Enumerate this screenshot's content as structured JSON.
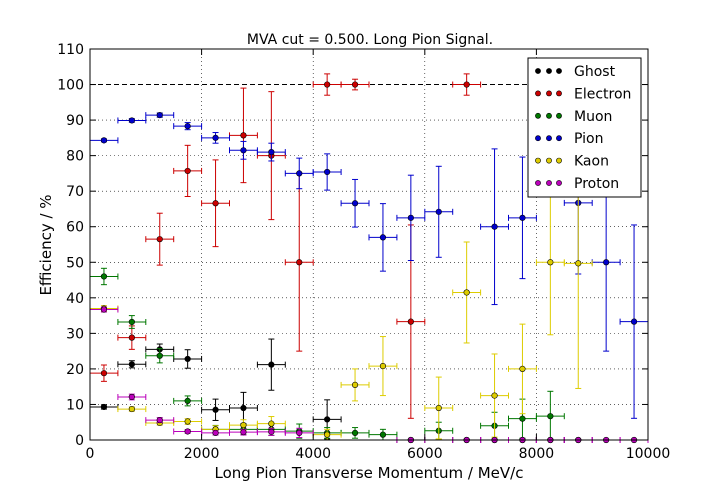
{
  "chart_data": {
    "type": "scatter",
    "title": "MVA cut = 0.500. Long Pion Signal.",
    "xlabel": "Long Pion Transverse Momentum / MeV/c",
    "ylabel": "Efficiency / %",
    "xlim": [
      0,
      10000
    ],
    "ylim": [
      0,
      110
    ],
    "xticks": [
      0,
      2000,
      4000,
      6000,
      8000,
      10000
    ],
    "yticks": [
      0,
      10,
      20,
      30,
      40,
      50,
      60,
      70,
      80,
      90,
      100,
      110
    ],
    "grid": true,
    "reference_line": 100,
    "legend_position": "top-right",
    "series": [
      {
        "name": "Ghost",
        "color": "#000000",
        "points": [
          {
            "x": 250,
            "y": 9.3,
            "xerr": 250,
            "yerr": 0.6
          },
          {
            "x": 750,
            "y": 21.3,
            "xerr": 250,
            "yerr": 1.0
          },
          {
            "x": 1250,
            "y": 25.5,
            "xerr": 250,
            "yerr": 1.5
          },
          {
            "x": 1750,
            "y": 22.8,
            "xerr": 250,
            "yerr": 2.6
          },
          {
            "x": 2250,
            "y": 8.5,
            "xerr": 250,
            "yerr": 3.0
          },
          {
            "x": 2750,
            "y": 9.0,
            "xerr": 250,
            "yerr": 4.4
          },
          {
            "x": 3250,
            "y": 21.2,
            "xerr": 250,
            "yerr": 7.2
          },
          {
            "x": 4250,
            "y": 5.8,
            "xerr": 250,
            "yerr": 5.5
          },
          {
            "x": 5750,
            "y": 0,
            "xerr": 250,
            "yerr": 0
          },
          {
            "x": 6750,
            "y": 0,
            "xerr": 250,
            "yerr": 0
          },
          {
            "x": 7250,
            "y": 0,
            "xerr": 250,
            "yerr": 0
          },
          {
            "x": 7750,
            "y": 0,
            "xerr": 250,
            "yerr": 0
          },
          {
            "x": 8250,
            "y": 0,
            "xerr": 250,
            "yerr": 0
          },
          {
            "x": 8750,
            "y": 0,
            "xerr": 250,
            "yerr": 0
          }
        ]
      },
      {
        "name": "Electron",
        "color": "#cc0000",
        "points": [
          {
            "x": 250,
            "y": 18.8,
            "xerr": 250,
            "yerr": 2.3
          },
          {
            "x": 750,
            "y": 28.8,
            "xerr": 250,
            "yerr": 3.3
          },
          {
            "x": 1250,
            "y": 56.5,
            "xerr": 250,
            "yerr": 7.3
          },
          {
            "x": 1750,
            "y": 75.7,
            "xerr": 250,
            "yerr": 7.2
          },
          {
            "x": 2250,
            "y": 66.6,
            "xerr": 250,
            "yerr": 12.2
          },
          {
            "x": 2750,
            "y": 85.7,
            "xerr": 250,
            "yerr": 13.3
          },
          {
            "x": 3250,
            "y": 80.0,
            "xerr": 250,
            "yerr": 18.0
          },
          {
            "x": 3750,
            "y": 50.0,
            "xerr": 250,
            "yerr": 25.0
          },
          {
            "x": 4250,
            "y": 100.0,
            "xerr": 250,
            "yerr": 3.0
          },
          {
            "x": 4750,
            "y": 100.0,
            "xerr": 250,
            "yerr": 1.5
          },
          {
            "x": 5750,
            "y": 33.3,
            "xerr": 250,
            "yerr": 27.2
          },
          {
            "x": 6750,
            "y": 100.0,
            "xerr": 250,
            "yerr": 3.0
          }
        ]
      },
      {
        "name": "Muon",
        "color": "#007700",
        "points": [
          {
            "x": 250,
            "y": 46.0,
            "xerr": 250,
            "yerr": 2.3
          },
          {
            "x": 750,
            "y": 33.2,
            "xerr": 250,
            "yerr": 1.8
          },
          {
            "x": 1250,
            "y": 23.7,
            "xerr": 250,
            "yerr": 2.0
          },
          {
            "x": 1750,
            "y": 11.0,
            "xerr": 250,
            "yerr": 1.4
          },
          {
            "x": 2250,
            "y": 3.0,
            "xerr": 250,
            "yerr": 1.1
          },
          {
            "x": 2750,
            "y": 3.0,
            "xerr": 250,
            "yerr": 1.5
          },
          {
            "x": 3250,
            "y": 3.0,
            "xerr": 250,
            "yerr": 1.7
          },
          {
            "x": 3750,
            "y": 2.5,
            "xerr": 250,
            "yerr": 2.0
          },
          {
            "x": 4250,
            "y": 2.0,
            "xerr": 250,
            "yerr": 1.5
          },
          {
            "x": 4750,
            "y": 2.0,
            "xerr": 250,
            "yerr": 1.5
          },
          {
            "x": 5250,
            "y": 1.5,
            "xerr": 250,
            "yerr": 1.5
          },
          {
            "x": 6250,
            "y": 2.6,
            "xerr": 250,
            "yerr": 2.4
          },
          {
            "x": 7250,
            "y": 4.0,
            "xerr": 250,
            "yerr": 3.8
          },
          {
            "x": 7750,
            "y": 6.0,
            "xerr": 250,
            "yerr": 5.5
          },
          {
            "x": 8250,
            "y": 6.7,
            "xerr": 250,
            "yerr": 7.0
          }
        ]
      },
      {
        "name": "Pion",
        "color": "#0000cc",
        "points": [
          {
            "x": 250,
            "y": 84.3,
            "xerr": 250,
            "yerr": 0.4
          },
          {
            "x": 750,
            "y": 89.9,
            "xerr": 250,
            "yerr": 0.5
          },
          {
            "x": 1250,
            "y": 91.4,
            "xerr": 250,
            "yerr": 0.6
          },
          {
            "x": 1750,
            "y": 88.3,
            "xerr": 250,
            "yerr": 1.0
          },
          {
            "x": 2250,
            "y": 85.0,
            "xerr": 250,
            "yerr": 1.5
          },
          {
            "x": 2750,
            "y": 81.5,
            "xerr": 250,
            "yerr": 2.5
          },
          {
            "x": 3250,
            "y": 81.0,
            "xerr": 250,
            "yerr": 2.5
          },
          {
            "x": 3750,
            "y": 75.0,
            "xerr": 250,
            "yerr": 4.3
          },
          {
            "x": 4250,
            "y": 75.4,
            "xerr": 250,
            "yerr": 5.1
          },
          {
            "x": 4750,
            "y": 66.6,
            "xerr": 250,
            "yerr": 6.7
          },
          {
            "x": 5250,
            "y": 57.0,
            "xerr": 250,
            "yerr": 9.5
          },
          {
            "x": 5750,
            "y": 62.5,
            "xerr": 250,
            "yerr": 12.0
          },
          {
            "x": 6250,
            "y": 64.2,
            "xerr": 250,
            "yerr": 12.8
          },
          {
            "x": 7250,
            "y": 60.0,
            "xerr": 250,
            "yerr": 21.9
          },
          {
            "x": 7750,
            "y": 62.5,
            "xerr": 250,
            "yerr": 17.1
          },
          {
            "x": 8750,
            "y": 66.7,
            "xerr": 250,
            "yerr": 20.0
          },
          {
            "x": 9250,
            "y": 50.0,
            "xerr": 250,
            "yerr": 25.0
          },
          {
            "x": 9750,
            "y": 33.3,
            "xerr": 250,
            "yerr": 27.2
          }
        ]
      },
      {
        "name": "Kaon",
        "color": "#ddcc00",
        "points": [
          {
            "x": 250,
            "y": 37.0,
            "xerr": 250,
            "yerr": 0.8
          },
          {
            "x": 750,
            "y": 8.7,
            "xerr": 250,
            "yerr": 0.6
          },
          {
            "x": 1250,
            "y": 4.8,
            "xerr": 250,
            "yerr": 0.6
          },
          {
            "x": 1750,
            "y": 5.2,
            "xerr": 250,
            "yerr": 0.8
          },
          {
            "x": 2250,
            "y": 3.0,
            "xerr": 250,
            "yerr": 1.0
          },
          {
            "x": 2750,
            "y": 4.2,
            "xerr": 250,
            "yerr": 1.5
          },
          {
            "x": 3250,
            "y": 4.6,
            "xerr": 250,
            "yerr": 2.0
          },
          {
            "x": 4250,
            "y": 1.5,
            "xerr": 250,
            "yerr": 1.5
          },
          {
            "x": 4750,
            "y": 15.5,
            "xerr": 250,
            "yerr": 4.5
          },
          {
            "x": 5250,
            "y": 20.8,
            "xerr": 250,
            "yerr": 8.3
          },
          {
            "x": 6250,
            "y": 9.0,
            "xerr": 250,
            "yerr": 8.7
          },
          {
            "x": 6750,
            "y": 41.5,
            "xerr": 250,
            "yerr": 14.2
          },
          {
            "x": 7250,
            "y": 12.5,
            "xerr": 250,
            "yerr": 11.7
          },
          {
            "x": 7750,
            "y": 20.0,
            "xerr": 250,
            "yerr": 12.6
          },
          {
            "x": 8250,
            "y": 50.0,
            "xerr": 250,
            "yerr": 20.4
          },
          {
            "x": 8750,
            "y": 49.7,
            "xerr": 250,
            "yerr": 35.2
          }
        ]
      },
      {
        "name": "Proton",
        "color": "#bb00bb",
        "points": [
          {
            "x": 250,
            "y": 36.7,
            "xerr": 250,
            "yerr": 0.7
          },
          {
            "x": 750,
            "y": 12.1,
            "xerr": 250,
            "yerr": 0.8
          },
          {
            "x": 1250,
            "y": 5.6,
            "xerr": 250,
            "yerr": 0.7
          },
          {
            "x": 1750,
            "y": 2.4,
            "xerr": 250,
            "yerr": 0.5
          },
          {
            "x": 2250,
            "y": 2.0,
            "xerr": 250,
            "yerr": 0.6
          },
          {
            "x": 2750,
            "y": 2.2,
            "xerr": 250,
            "yerr": 0.8
          },
          {
            "x": 3250,
            "y": 2.3,
            "xerr": 250,
            "yerr": 1.0
          },
          {
            "x": 3750,
            "y": 2.0,
            "xerr": 250,
            "yerr": 1.3
          },
          {
            "x": 5750,
            "y": 0,
            "xerr": 250,
            "yerr": 0
          },
          {
            "x": 6750,
            "y": 0,
            "xerr": 250,
            "yerr": 0
          },
          {
            "x": 7250,
            "y": 0,
            "xerr": 250,
            "yerr": 0
          },
          {
            "x": 7750,
            "y": 0,
            "xerr": 250,
            "yerr": 0
          },
          {
            "x": 8250,
            "y": 0,
            "xerr": 250,
            "yerr": 0
          },
          {
            "x": 8750,
            "y": 0,
            "xerr": 250,
            "yerr": 0
          },
          {
            "x": 9250,
            "y": 0,
            "xerr": 250,
            "yerr": 0
          },
          {
            "x": 9750,
            "y": 0,
            "xerr": 250,
            "yerr": 0
          }
        ]
      }
    ]
  }
}
